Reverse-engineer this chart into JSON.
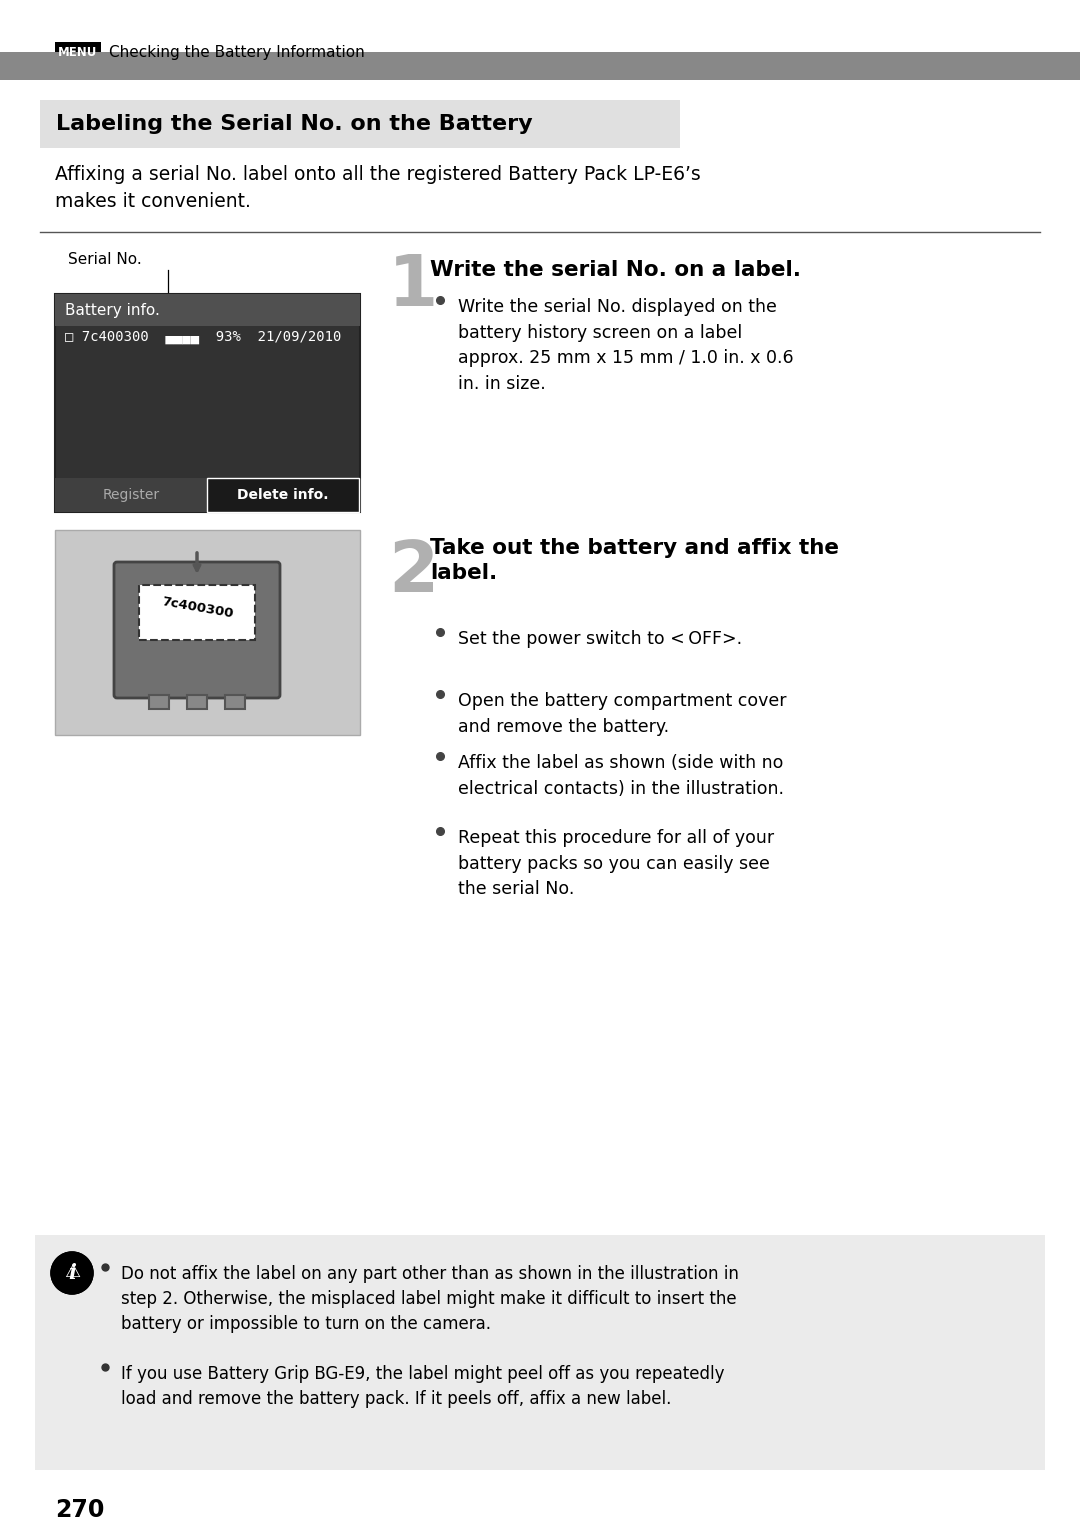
{
  "page_bg": "#ffffff",
  "header_text": "Checking the Battery Information",
  "header_menu_text": "MENU",
  "header_bar_color": "#888888",
  "section_title": "Labeling the Serial No. on the Battery",
  "section_title_bg": "#e0e0e0",
  "intro_text": "Affixing a serial No. label onto all the registered Battery Pack LP-E6’s\nmakes it convenient.",
  "step1_number": "1",
  "step1_title": "Write the serial No. on a label.",
  "step1_bullets": [
    "Write the serial No. displayed on the\nbattery history screen on a label\napprox. 25 mm x 15 mm / 1.0 in. x 0.6\nin. in size."
  ],
  "step2_number": "2",
  "step2_title": "Take out the battery and affix the\nlabel.",
  "step2_bullets": [
    "Set the power switch to < OFF>.",
    "Open the battery compartment cover\nand remove the battery.",
    "Affix the label as shown (side with no\nelectrical contacts) in the illustration.",
    "Repeat this procedure for all of your\nbattery packs so you can easily see\nthe serial No."
  ],
  "warning_bullets": [
    "Do not affix the label on any part other than as shown in the illustration in\nstep 2. Otherwise, the misplaced label might make it difficult to insert the\nbattery or impossible to turn on the camera.",
    "If you use Battery Grip BG-E9, the label might peel off as you repeatedly\nload and remove the battery pack. If it peels off, affix a new label."
  ],
  "page_number": "270",
  "serial_no_label": "Serial No.",
  "battery_screen_title": "Battery info.",
  "battery_screen_line1": "□ 7c400300",
  "battery_screen_battery": "[====]",
  "battery_screen_line2": "93% 21/09/2010",
  "battery_screen_btn1": "Register",
  "battery_screen_btn2": "Delete info."
}
